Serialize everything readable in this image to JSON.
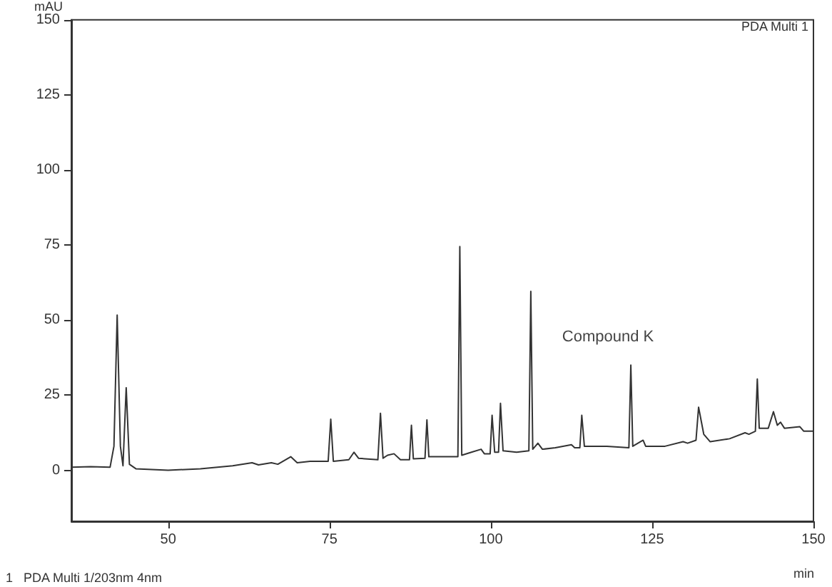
{
  "chart_data": {
    "type": "line",
    "xlabel": "min",
    "ylabel": "mAU",
    "annotations": [
      "PDA Multi 1",
      "1   PDA Multi 1/203nm 4nm",
      {
        "text": "Compound K",
        "x": 121.7,
        "y": 35
      }
    ],
    "xlim": [
      35,
      150
    ],
    "xticks": [
      50,
      75,
      100,
      125,
      150
    ],
    "ylim": [
      -17,
      150
    ],
    "yticks": [
      0,
      25,
      50,
      75,
      100,
      125,
      150
    ],
    "grid": false,
    "marker": "none",
    "line_style": "solid",
    "series": [
      {
        "color": "#333333",
        "x": [
          35,
          38,
          41,
          41.6,
          42.1,
          42.6,
          43,
          43.5,
          44,
          45,
          50,
          55,
          60,
          63,
          64,
          66,
          67,
          69,
          70,
          72,
          74.8,
          75.2,
          75.6,
          78,
          78.8,
          79.5,
          82.5,
          82.9,
          83.3,
          84,
          85,
          86,
          87.4,
          87.7,
          88,
          89.8,
          90.1,
          90.4,
          92,
          94.9,
          95.2,
          95.5,
          97,
          98.5,
          99,
          99.9,
          100.2,
          100.6,
          101.2,
          101.5,
          101.9,
          104,
          105.9,
          106.2,
          106.5,
          107.3,
          108,
          110,
          112.5,
          113,
          113.8,
          114.1,
          114.5,
          118,
          121.4,
          121.7,
          122,
          123.6,
          124,
          127,
          129.8,
          130.5,
          131.8,
          132.2,
          133,
          134,
          137,
          139.4,
          140,
          141,
          141.3,
          141.6,
          143,
          143.8,
          144.4,
          144.9,
          145.5,
          147.9,
          148.5,
          150
        ],
        "values": [
          1,
          1.2,
          1,
          8,
          51.7,
          8,
          1.5,
          27.5,
          2,
          0.5,
          0,
          0.5,
          1.5,
          2.5,
          1.8,
          2.5,
          2,
          4.5,
          2.5,
          3,
          3,
          17,
          3,
          3.5,
          6,
          4,
          3.5,
          19,
          4,
          5,
          5.5,
          3.5,
          3.5,
          15,
          3.8,
          4,
          16.8,
          4.5,
          4.5,
          4.5,
          74.5,
          5,
          6,
          7,
          5.5,
          5.5,
          18.3,
          6,
          6,
          22.3,
          6.5,
          6,
          6.5,
          59.6,
          7,
          9,
          7,
          7.5,
          8.5,
          7.5,
          7.5,
          18.3,
          8,
          8,
          7.5,
          35,
          8,
          10,
          8,
          8,
          9.5,
          9,
          10,
          21,
          12,
          9.5,
          10.5,
          12.5,
          12,
          13,
          30.4,
          14,
          14,
          19.5,
          15,
          16,
          14,
          14.5,
          13,
          13
        ]
      }
    ]
  }
}
